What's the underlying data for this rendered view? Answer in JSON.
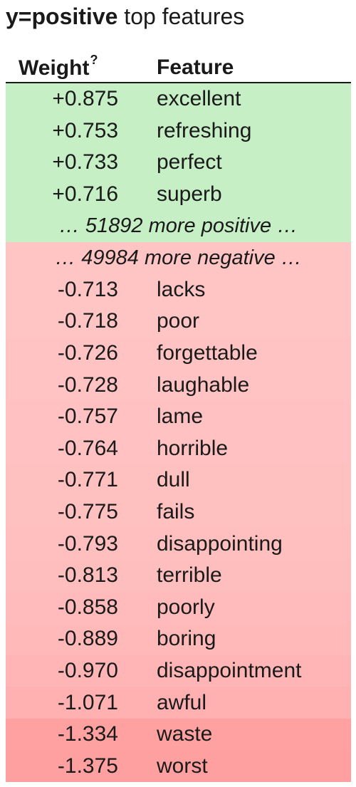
{
  "title": {
    "target": "y=positive",
    "suffix": " top features"
  },
  "header": {
    "weight": "Weight",
    "weight_help": "?",
    "feature": "Feature"
  },
  "positive_rows": [
    {
      "weight": "+0.875",
      "feature": "excellent",
      "color": "#c6efc6"
    },
    {
      "weight": "+0.753",
      "feature": "refreshing",
      "color": "#c6efc6"
    },
    {
      "weight": "+0.733",
      "feature": "perfect",
      "color": "#c6efc6"
    },
    {
      "weight": "+0.716",
      "feature": "superb",
      "color": "#c6efc6"
    }
  ],
  "positive_summary": {
    "text": "… 51892 more positive …",
    "color": "#c6efc6"
  },
  "negative_summary": {
    "text": "… 49984 more negative …",
    "color": "#ffc4c4"
  },
  "negative_rows": [
    {
      "weight": "-0.713",
      "feature": "lacks",
      "color": "#ffc4c4"
    },
    {
      "weight": "-0.718",
      "feature": "poor",
      "color": "#ffc4c4"
    },
    {
      "weight": "-0.726",
      "feature": "forgettable",
      "color": "#ffc3c3"
    },
    {
      "weight": "-0.728",
      "feature": "laughable",
      "color": "#ffc3c3"
    },
    {
      "weight": "-0.757",
      "feature": "lame",
      "color": "#ffc1c1"
    },
    {
      "weight": "-0.764",
      "feature": "horrible",
      "color": "#ffc1c1"
    },
    {
      "weight": "-0.771",
      "feature": "dull",
      "color": "#ffc0c0"
    },
    {
      "weight": "-0.775",
      "feature": "fails",
      "color": "#ffc0c0"
    },
    {
      "weight": "-0.793",
      "feature": "disappointing",
      "color": "#ffbfbf"
    },
    {
      "weight": "-0.813",
      "feature": "terrible",
      "color": "#ffbebe"
    },
    {
      "weight": "-0.858",
      "feature": "poorly",
      "color": "#ffbbbb"
    },
    {
      "weight": "-0.889",
      "feature": "boring",
      "color": "#ffb9b9"
    },
    {
      "weight": "-0.970",
      "feature": "disappointment",
      "color": "#ffb5b5"
    },
    {
      "weight": "-1.071",
      "feature": "awful",
      "color": "#ffb0b0"
    },
    {
      "weight": "-1.334",
      "feature": "waste",
      "color": "#ffa1a1"
    },
    {
      "weight": "-1.375",
      "feature": "worst",
      "color": "#ffa0a0"
    }
  ]
}
